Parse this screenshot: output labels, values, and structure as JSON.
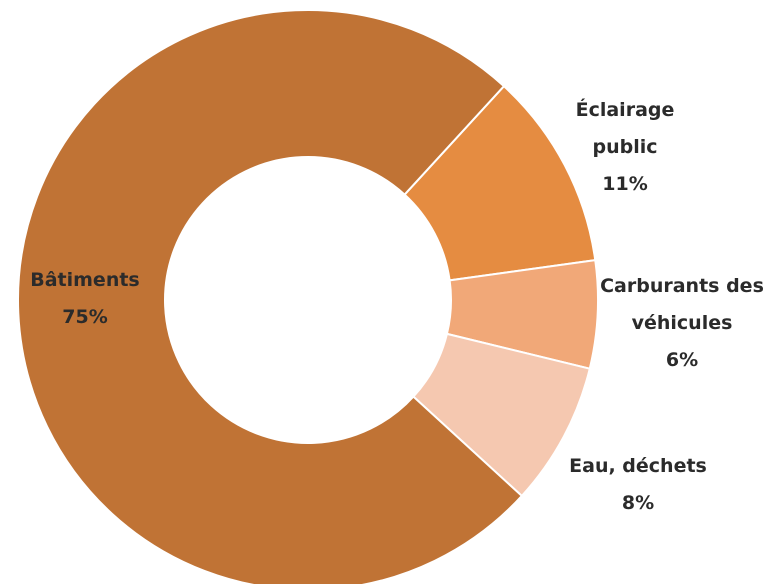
{
  "chart_data": {
    "type": "donut",
    "categories": [
      "Éclairage public",
      "Carburants des véhicules",
      "Eau, déchets",
      "Bâtiments"
    ],
    "values": [
      11,
      6,
      8,
      75
    ],
    "value_labels": [
      "11%",
      "6%",
      "8%",
      "75%"
    ],
    "colors": [
      "#e58c41",
      "#f1a878",
      "#f5c8b0",
      "#c07335"
    ]
  }
}
